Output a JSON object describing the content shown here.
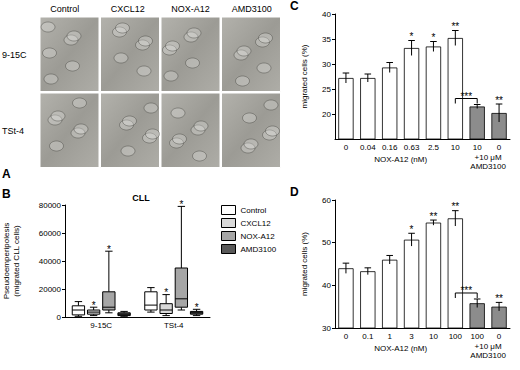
{
  "chart_data": [
    {
      "type": "image_grid",
      "panel": "A",
      "columns": [
        "Control",
        "CXCL12",
        "NOX-A12",
        "AMD3100"
      ],
      "rows": [
        "9-15C",
        "TSt-4"
      ]
    },
    {
      "type": "boxplot",
      "panel": "B",
      "title": "CLL",
      "ylabel": "Pseudoemperipolesis\n(migrated CLL cells)",
      "categories": [
        "9-15C",
        "TSt-4"
      ],
      "ylim": [
        0,
        80000
      ],
      "yticks": [
        0,
        20000,
        40000,
        60000,
        80000
      ],
      "legend": "right",
      "series": [
        {
          "name": "Control",
          "color": "#ffffff",
          "values": [
            [
              500,
              1500,
              5000,
              8000,
              11000
            ],
            [
              3500,
              5000,
              8500,
              18000,
              21000
            ]
          ],
          "significance": [
            null,
            null
          ]
        },
        {
          "name": "CXCL12",
          "color": "#d9d9d9",
          "values": [
            [
              1000,
              2000,
              3500,
              5000,
              7000
            ],
            [
              1000,
              2500,
              5000,
              9500,
              16000
            ]
          ],
          "significance": [
            "*",
            "*"
          ]
        },
        {
          "name": "NOX-A12",
          "color": "#a6a6a6",
          "values": [
            [
              3000,
              5000,
              7000,
              18000,
              47000
            ],
            [
              5000,
              7000,
              13000,
              35000,
              79000
            ]
          ],
          "significance": [
            "*",
            "*"
          ]
        },
        {
          "name": "AMD3100",
          "color": "#595959",
          "values": [
            [
              500,
              1000,
              2000,
              3000,
              4000
            ],
            [
              1000,
              2000,
              3000,
              4000,
              5500
            ]
          ],
          "significance": [
            null,
            "*"
          ]
        }
      ]
    },
    {
      "type": "bar",
      "panel": "C",
      "xlabel": "NOX-A12 (nM)",
      "ylabel": "migrated cells (%)",
      "categories": [
        "0",
        "0.04",
        "0.16",
        "0.63",
        "2.5",
        "10",
        "10",
        "0"
      ],
      "values": [
        27.2,
        27.2,
        29.3,
        33.2,
        33.5,
        35.2,
        21.5,
        20.2
      ],
      "errors": [
        1.0,
        0.8,
        1.0,
        1.5,
        1.0,
        1.5,
        0.4,
        1.8
      ],
      "colors": [
        "#ffffff",
        "#ffffff",
        "#ffffff",
        "#ffffff",
        "#ffffff",
        "#ffffff",
        "#8c8c8c",
        "#8c8c8c"
      ],
      "significance": [
        null,
        null,
        null,
        "*",
        "*",
        "**",
        null,
        "**"
      ],
      "brackets": [
        {
          "between": [
            5,
            6
          ],
          "label": "***"
        }
      ],
      "group": {
        "label": "+10 μM\nAMD3100",
        "between": [
          6,
          7
        ]
      },
      "ylim": [
        15,
        40
      ],
      "yticks": [
        20,
        25,
        30,
        35,
        40
      ]
    },
    {
      "type": "bar",
      "panel": "D",
      "xlabel": "NOX-A12 (nM)",
      "ylabel": "migrated cells (%)",
      "categories": [
        "0",
        "0.1",
        "1",
        "3",
        "10",
        "100",
        "100",
        "0"
      ],
      "values": [
        44,
        43.3,
        46,
        50.7,
        54.7,
        55.7,
        35.8,
        35
      ],
      "errors": [
        1.2,
        0.8,
        1.0,
        1.5,
        0.6,
        1.8,
        1.0,
        1.0
      ],
      "colors": [
        "#ffffff",
        "#ffffff",
        "#ffffff",
        "#ffffff",
        "#ffffff",
        "#ffffff",
        "#8c8c8c",
        "#8c8c8c"
      ],
      "significance": [
        null,
        null,
        null,
        "*",
        "**",
        "**",
        null,
        "**"
      ],
      "brackets": [
        {
          "between": [
            5,
            6
          ],
          "label": "***"
        }
      ],
      "group": {
        "label": "+10 μM\nAMD3100",
        "between": [
          6,
          7
        ]
      },
      "ylim": [
        30,
        60
      ],
      "yticks": [
        30,
        40,
        50,
        60
      ]
    }
  ]
}
